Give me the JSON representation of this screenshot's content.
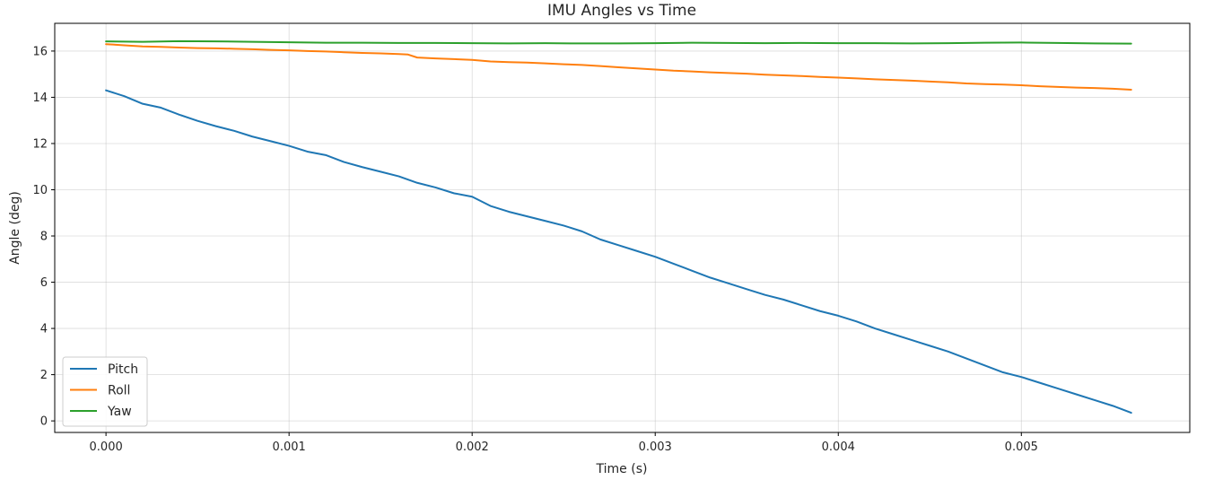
{
  "chart_data": {
    "type": "line",
    "title": "IMU Angles vs Time",
    "xlabel": "Time (s)",
    "ylabel": "Angle (deg)",
    "xlim": [
      -0.00028,
      0.00592
    ],
    "ylim": [
      -0.5,
      17.2
    ],
    "xticks": [
      0.0,
      0.001,
      0.002,
      0.003,
      0.004,
      0.005
    ],
    "xtick_labels": [
      "0.000",
      "0.001",
      "0.002",
      "0.003",
      "0.004",
      "0.005"
    ],
    "yticks": [
      0,
      2,
      4,
      6,
      8,
      10,
      12,
      14,
      16
    ],
    "ytick_labels": [
      "0",
      "2",
      "4",
      "6",
      "8",
      "10",
      "12",
      "14",
      "16"
    ],
    "grid": true,
    "legend_position": "lower-left",
    "series": [
      {
        "name": "Pitch",
        "color": "#1f77b4",
        "x": [
          0.0,
          0.0001,
          0.0002,
          0.0003,
          0.0004,
          0.0005,
          0.0006,
          0.0007,
          0.0008,
          0.0009,
          0.001,
          0.0011,
          0.0012,
          0.0013,
          0.0014,
          0.0015,
          0.0016,
          0.0017,
          0.0018,
          0.0019,
          0.002,
          0.0021,
          0.0022,
          0.0023,
          0.0024,
          0.0025,
          0.0026,
          0.0027,
          0.0028,
          0.0029,
          0.003,
          0.0031,
          0.0032,
          0.0033,
          0.0034,
          0.0035,
          0.0036,
          0.0037,
          0.0038,
          0.0039,
          0.004,
          0.0041,
          0.0042,
          0.0043,
          0.0044,
          0.0045,
          0.0046,
          0.0047,
          0.0048,
          0.0049,
          0.005,
          0.0051,
          0.0052,
          0.0053,
          0.0054,
          0.0055,
          0.0056
        ],
        "values": [
          14.3,
          14.05,
          13.72,
          13.55,
          13.25,
          12.98,
          12.75,
          12.55,
          12.3,
          12.1,
          11.9,
          11.65,
          11.5,
          11.2,
          10.98,
          10.78,
          10.58,
          10.3,
          10.1,
          9.85,
          9.7,
          9.3,
          9.05,
          8.85,
          8.65,
          8.45,
          8.2,
          7.85,
          7.6,
          7.35,
          7.1,
          6.8,
          6.5,
          6.2,
          5.95,
          5.7,
          5.45,
          5.25,
          5.0,
          4.75,
          4.55,
          4.3,
          4.0,
          3.75,
          3.5,
          3.25,
          3.0,
          2.7,
          2.4,
          2.1,
          1.9,
          1.65,
          1.4,
          1.15,
          0.9,
          0.65,
          0.35
        ]
      },
      {
        "name": "Roll",
        "color": "#ff7f0e",
        "x": [
          0.0,
          0.0001,
          0.0002,
          0.0003,
          0.0004,
          0.0005,
          0.0006,
          0.0007,
          0.0008,
          0.0009,
          0.001,
          0.0011,
          0.0012,
          0.0013,
          0.0014,
          0.0015,
          0.0016,
          0.00165,
          0.0017,
          0.0018,
          0.0019,
          0.002,
          0.0021,
          0.0022,
          0.0023,
          0.0024,
          0.0025,
          0.0026,
          0.0027,
          0.0028,
          0.0029,
          0.003,
          0.0031,
          0.0032,
          0.0033,
          0.0034,
          0.0035,
          0.0036,
          0.0037,
          0.0038,
          0.0039,
          0.004,
          0.0041,
          0.0042,
          0.0043,
          0.0044,
          0.0045,
          0.0046,
          0.0047,
          0.0048,
          0.0049,
          0.005,
          0.0051,
          0.0052,
          0.0053,
          0.0054,
          0.0055,
          0.0056
        ],
        "values": [
          16.3,
          16.25,
          16.2,
          16.18,
          16.15,
          16.13,
          16.12,
          16.1,
          16.08,
          16.05,
          16.03,
          16.0,
          15.98,
          15.95,
          15.92,
          15.9,
          15.87,
          15.85,
          15.72,
          15.68,
          15.65,
          15.62,
          15.55,
          15.52,
          15.5,
          15.47,
          15.43,
          15.4,
          15.35,
          15.3,
          15.25,
          15.2,
          15.15,
          15.12,
          15.08,
          15.05,
          15.02,
          14.98,
          14.95,
          14.92,
          14.88,
          14.85,
          14.82,
          14.78,
          14.75,
          14.72,
          14.68,
          14.65,
          14.6,
          14.57,
          14.55,
          14.52,
          14.48,
          14.45,
          14.42,
          14.4,
          14.37,
          14.33
        ]
      },
      {
        "name": "Yaw",
        "color": "#2ca02c",
        "x": [
          0.0,
          0.0002,
          0.0004,
          0.0006,
          0.0008,
          0.001,
          0.0012,
          0.0014,
          0.0016,
          0.0018,
          0.002,
          0.0022,
          0.0024,
          0.0026,
          0.0028,
          0.003,
          0.0032,
          0.0034,
          0.0036,
          0.0038,
          0.004,
          0.0042,
          0.0044,
          0.0046,
          0.0048,
          0.005,
          0.0052,
          0.0054,
          0.0056
        ],
        "values": [
          16.42,
          16.4,
          16.43,
          16.42,
          16.4,
          16.38,
          16.36,
          16.36,
          16.35,
          16.35,
          16.34,
          16.33,
          16.34,
          16.33,
          16.33,
          16.34,
          16.36,
          16.35,
          16.34,
          16.35,
          16.34,
          16.34,
          16.33,
          16.34,
          16.36,
          16.37,
          16.35,
          16.33,
          16.32
        ]
      }
    ]
  }
}
